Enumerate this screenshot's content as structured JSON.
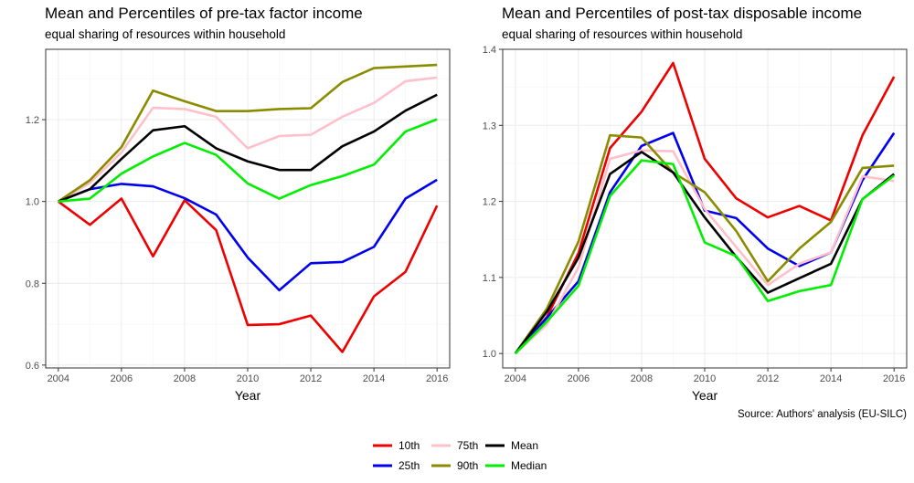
{
  "chart_data": [
    {
      "type": "line",
      "title": "Mean and Percentiles of pre-tax factor income",
      "subtitle": "equal sharing of resources within household",
      "xlabel": "Year",
      "ylabel": "",
      "x": [
        2004,
        2005,
        2006,
        2007,
        2008,
        2009,
        2010,
        2011,
        2012,
        2013,
        2014,
        2015,
        2016
      ],
      "xlim": [
        2003.6,
        2016.4
      ],
      "ylim": [
        0.593,
        1.372
      ],
      "x_ticks": [
        2004,
        2006,
        2008,
        2010,
        2012,
        2014,
        2016
      ],
      "x_tick_labels": [
        "2004",
        "2006",
        "2008",
        "2010",
        "2012",
        "2014",
        "2016"
      ],
      "y_ticks": [
        0.6,
        0.8,
        1.0,
        1.2
      ],
      "y_tick_labels": [
        "0.6",
        "0.8",
        "1.0",
        "1.2"
      ],
      "grid": true,
      "series": [
        {
          "name": "10th",
          "color": "#ee0000",
          "values": [
            1.0,
            0.943,
            1.007,
            0.866,
            1.003,
            0.93,
            0.698,
            0.7,
            0.721,
            0.632,
            0.768,
            0.828,
            0.99
          ]
        },
        {
          "name": "25th",
          "color": "#0000ee",
          "values": [
            1.0,
            1.03,
            1.043,
            1.037,
            1.008,
            0.968,
            0.863,
            0.783,
            0.849,
            0.852,
            0.889,
            1.007,
            1.053
          ]
        },
        {
          "name": "75th",
          "color": "#ffc0cb",
          "values": [
            1.0,
            1.045,
            1.12,
            1.229,
            1.226,
            1.207,
            1.13,
            1.16,
            1.163,
            1.207,
            1.241,
            1.294,
            1.303
          ]
        },
        {
          "name": "90th",
          "color": "#8b8b00",
          "values": [
            1.0,
            1.052,
            1.133,
            1.271,
            1.245,
            1.221,
            1.221,
            1.226,
            1.228,
            1.292,
            1.326,
            1.33,
            1.334
          ]
        },
        {
          "name": "Mean",
          "color": "#000000",
          "values": [
            1.0,
            1.03,
            1.104,
            1.174,
            1.184,
            1.13,
            1.098,
            1.077,
            1.077,
            1.135,
            1.171,
            1.222,
            1.261
          ]
        },
        {
          "name": "Median",
          "color": "#00ee00",
          "values": [
            1.0,
            1.007,
            1.068,
            1.11,
            1.143,
            1.114,
            1.044,
            1.007,
            1.04,
            1.062,
            1.09,
            1.171,
            1.201
          ]
        }
      ]
    },
    {
      "type": "line",
      "title": "Mean and Percentiles of post-tax disposable income",
      "subtitle": "equal sharing of resources within household",
      "xlabel": "Year",
      "ylabel": "",
      "x": [
        2004,
        2005,
        2006,
        2007,
        2008,
        2009,
        2010,
        2011,
        2012,
        2013,
        2014,
        2015,
        2016
      ],
      "xlim": [
        2003.6,
        2016.4
      ],
      "ylim": [
        0.981,
        1.4
      ],
      "x_ticks": [
        2004,
        2006,
        2008,
        2010,
        2012,
        2014,
        2016
      ],
      "x_tick_labels": [
        "2004",
        "2006",
        "2008",
        "2010",
        "2012",
        "2014",
        "2016"
      ],
      "y_ticks": [
        1.0,
        1.1,
        1.2,
        1.3,
        1.4
      ],
      "y_tick_labels": [
        "1.0",
        "1.1",
        "1.2",
        "1.3",
        "1.4"
      ],
      "grid": true,
      "series": [
        {
          "name": "10th",
          "color": "#ee0000",
          "values": [
            1.0,
            1.048,
            1.132,
            1.27,
            1.318,
            1.382,
            1.256,
            1.204,
            1.179,
            1.194,
            1.175,
            1.287,
            1.364
          ]
        },
        {
          "name": "25th",
          "color": "#0000ee",
          "values": [
            1.0,
            1.047,
            1.095,
            1.212,
            1.273,
            1.29,
            1.188,
            1.178,
            1.138,
            1.115,
            1.133,
            1.228,
            1.29
          ]
        },
        {
          "name": "75th",
          "color": "#ffc0cb",
          "values": [
            1.0,
            1.038,
            1.113,
            1.256,
            1.267,
            1.266,
            1.19,
            1.14,
            1.09,
            1.118,
            1.133,
            1.233,
            1.227
          ]
        },
        {
          "name": "90th",
          "color": "#8b8b00",
          "values": [
            1.0,
            1.059,
            1.147,
            1.287,
            1.284,
            1.238,
            1.212,
            1.161,
            1.095,
            1.138,
            1.173,
            1.244,
            1.247
          ]
        },
        {
          "name": "Mean",
          "color": "#000000",
          "values": [
            1.0,
            1.055,
            1.126,
            1.236,
            1.265,
            1.238,
            1.179,
            1.127,
            1.08,
            1.099,
            1.118,
            1.203,
            1.236
          ]
        },
        {
          "name": "Median",
          "color": "#00ee00",
          "values": [
            1.0,
            1.042,
            1.089,
            1.207,
            1.254,
            1.249,
            1.146,
            1.128,
            1.069,
            1.082,
            1.09,
            1.203,
            1.234
          ]
        }
      ]
    }
  ],
  "source": "Source: Authors' analysis (EU-SILC)",
  "legend": {
    "placement": "bottom",
    "entries": [
      {
        "label": "10th",
        "color": "#ee0000"
      },
      {
        "label": "25th",
        "color": "#0000ee"
      },
      {
        "label": "75th",
        "color": "#ffc0cb"
      },
      {
        "label": "90th",
        "color": "#8b8b00"
      },
      {
        "label": "Mean",
        "color": "#000000"
      },
      {
        "label": "Median",
        "color": "#00ee00"
      }
    ]
  }
}
